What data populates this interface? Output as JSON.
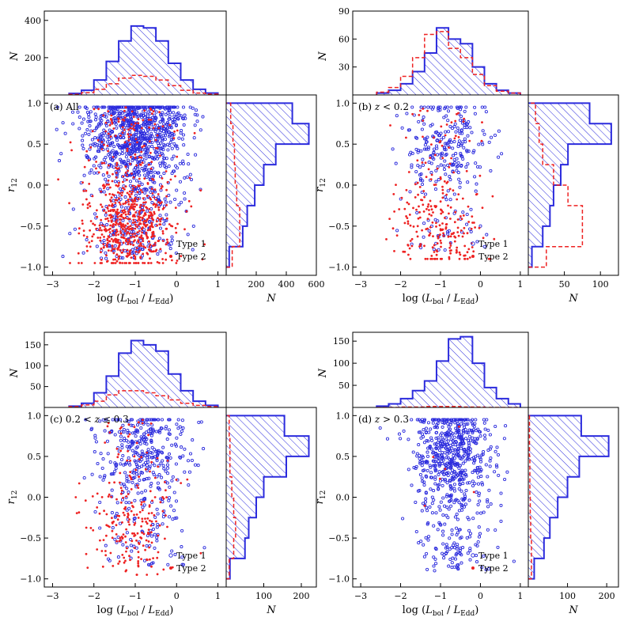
{
  "chart_data": [
    {
      "type": "scatter",
      "panel_label": "(a) All",
      "xlabel": "log (L_bol / L_Edd)",
      "ylabel": "r_12",
      "xlim": [
        -3.2,
        1.2
      ],
      "ylim": [
        -1.1,
        1.1
      ],
      "xticks": [
        "−3",
        "−2",
        "−1",
        "0",
        "1"
      ],
      "yticks": [
        "−1.0",
        "−0.5",
        "0.0",
        "0.5",
        "1.0"
      ],
      "legend": [
        "Type 1",
        "Type 2"
      ],
      "colors": {
        "type1": "#2b2bdd",
        "type2": "#ee2222"
      },
      "type1_cloud": {
        "n": 1100,
        "x_mean": -0.95,
        "x_sd": 0.6,
        "y_range": [
          -0.9,
          0.95
        ],
        "y_peak": 0.65
      },
      "type2_cloud": {
        "n": 700,
        "x_mean": -1.1,
        "x_sd": 0.55,
        "y_range": [
          -0.95,
          0.95
        ],
        "y_peak": -0.5
      },
      "top_hist": {
        "ylabel": "N",
        "ylim": [
          0,
          450
        ],
        "yticks": [
          "200",
          "400"
        ],
        "bin_edges": [
          -2.6,
          -2.3,
          -2.0,
          -1.7,
          -1.4,
          -1.1,
          -0.8,
          -0.5,
          -0.2,
          0.1,
          0.4,
          0.7,
          1.0
        ],
        "type1": [
          8,
          25,
          80,
          180,
          290,
          370,
          360,
          290,
          170,
          80,
          30,
          10
        ],
        "type2": [
          3,
          12,
          30,
          60,
          90,
          105,
          100,
          80,
          50,
          25,
          10,
          4
        ]
      },
      "right_hist": {
        "xlabel": "N",
        "xlim": [
          0,
          600
        ],
        "xticks": [
          "200",
          "400",
          "600"
        ],
        "bin_edges": [
          -1.0,
          -0.75,
          -0.5,
          -0.25,
          0.0,
          0.25,
          0.5,
          0.75,
          1.0
        ],
        "type1": [
          20,
          110,
          140,
          190,
          250,
          330,
          550,
          440
        ],
        "type2": [
          40,
          90,
          90,
          70,
          60,
          55,
          45,
          30
        ]
      }
    },
    {
      "type": "scatter",
      "panel_label": "(b) z < 0.2",
      "xlabel": "log (L_bol / L_Edd)",
      "ylabel": "r_12",
      "xlim": [
        -3.2,
        1.2
      ],
      "ylim": [
        -1.1,
        1.1
      ],
      "xticks": [
        "−3",
        "−2",
        "−1",
        "0",
        "1"
      ],
      "yticks": [
        "−1.0",
        "−0.5",
        "0.0",
        "0.5",
        "1.0"
      ],
      "legend": [
        "Type 1",
        "Type 2"
      ],
      "colors": {
        "type1": "#2b2bdd",
        "type2": "#ee2222"
      },
      "type1_cloud": {
        "n": 280,
        "x_mean": -0.85,
        "x_sd": 0.55,
        "y_range": [
          -0.8,
          0.95
        ],
        "y_peak": 0.6
      },
      "type2_cloud": {
        "n": 260,
        "x_mean": -1.05,
        "x_sd": 0.55,
        "y_range": [
          -0.9,
          0.95
        ],
        "y_peak": -0.55
      },
      "top_hist": {
        "ylabel": "N",
        "ylim": [
          0,
          90
        ],
        "yticks": [
          "30",
          "60",
          "90"
        ],
        "bin_edges": [
          -2.6,
          -2.3,
          -2.0,
          -1.7,
          -1.4,
          -1.1,
          -0.8,
          -0.5,
          -0.2,
          0.1,
          0.4,
          0.7,
          1.0
        ],
        "type1": [
          2,
          5,
          12,
          25,
          45,
          72,
          60,
          55,
          30,
          12,
          5,
          2
        ],
        "type2": [
          3,
          8,
          20,
          40,
          65,
          68,
          50,
          40,
          22,
          10,
          4,
          2
        ]
      },
      "right_hist": {
        "xlabel": "N",
        "xlim": [
          0,
          125
        ],
        "xticks": [
          "50",
          "100"
        ],
        "bin_edges": [
          -1.0,
          -0.75,
          -0.5,
          -0.25,
          0.0,
          0.25,
          0.5,
          0.75,
          1.0
        ],
        "type1": [
          5,
          20,
          30,
          35,
          45,
          55,
          115,
          85
        ],
        "type2": [
          25,
          75,
          75,
          55,
          35,
          20,
          15,
          10
        ]
      }
    },
    {
      "type": "scatter",
      "panel_label": "(c) 0.2 < z ≤ 0.3",
      "xlabel": "log (L_bol / L_Edd)",
      "ylabel": "r_12",
      "xlim": [
        -3.2,
        1.2
      ],
      "ylim": [
        -1.1,
        1.1
      ],
      "xticks": [
        "−3",
        "−2",
        "−1",
        "0",
        "1"
      ],
      "yticks": [
        "−1.0",
        "−0.5",
        "0.0",
        "0.5",
        "1.0"
      ],
      "legend": [
        "Type 1",
        "Type 2"
      ],
      "colors": {
        "type1": "#2b2bdd",
        "type2": "#ee2222"
      },
      "type1_cloud": {
        "n": 420,
        "x_mean": -0.85,
        "x_sd": 0.55,
        "y_range": [
          -0.85,
          0.95
        ],
        "y_peak": 0.6
      },
      "type2_cloud": {
        "n": 230,
        "x_mean": -1.05,
        "x_sd": 0.55,
        "y_range": [
          -0.95,
          0.95
        ],
        "y_peak": -0.35
      },
      "top_hist": {
        "ylabel": "N",
        "ylim": [
          0,
          180
        ],
        "yticks": [
          "50",
          "100",
          "150"
        ],
        "bin_edges": [
          -2.6,
          -2.3,
          -2.0,
          -1.7,
          -1.4,
          -1.1,
          -0.8,
          -0.5,
          -0.2,
          0.1,
          0.4,
          0.7,
          1.0
        ],
        "type1": [
          3,
          10,
          35,
          75,
          130,
          160,
          150,
          135,
          80,
          40,
          15,
          5
        ],
        "type2": [
          2,
          6,
          15,
          30,
          40,
          40,
          35,
          28,
          18,
          10,
          5,
          2
        ]
      },
      "right_hist": {
        "xlabel": "N",
        "xlim": [
          0,
          240
        ],
        "xticks": [
          "100",
          "200"
        ],
        "bin_edges": [
          -1.0,
          -0.75,
          -0.5,
          -0.25,
          0.0,
          0.25,
          0.5,
          0.75,
          1.0
        ],
        "type1": [
          10,
          50,
          60,
          80,
          100,
          160,
          220,
          155
        ],
        "type2": [
          8,
          20,
          25,
          20,
          15,
          10,
          10,
          8
        ]
      }
    },
    {
      "type": "scatter",
      "panel_label": "(d) z > 0.3",
      "xlabel": "log (L_bol / L_Edd)",
      "ylabel": "r_12",
      "xlim": [
        -3.2,
        1.2
      ],
      "ylim": [
        -1.1,
        1.1
      ],
      "xticks": [
        "−3",
        "−2",
        "−1",
        "0",
        "1"
      ],
      "yticks": [
        "−1.0",
        "−0.5",
        "0.0",
        "0.5",
        "1.0"
      ],
      "legend": [
        "Type 1",
        "Type 2"
      ],
      "colors": {
        "type1": "#2b2bdd",
        "type2": "#ee2222"
      },
      "type1_cloud": {
        "n": 700,
        "x_mean": -0.7,
        "x_sd": 0.5,
        "y_range": [
          -0.9,
          0.95
        ],
        "y_peak": 0.6
      },
      "type2_cloud": {
        "n": 6,
        "x_mean": -0.8,
        "x_sd": 0.5,
        "y_range": [
          -0.9,
          0.9
        ],
        "y_peak": 0.0
      },
      "top_hist": {
        "ylabel": "N",
        "ylim": [
          0,
          170
        ],
        "yticks": [
          "50",
          "100",
          "150"
        ],
        "bin_edges": [
          -2.6,
          -2.3,
          -2.0,
          -1.7,
          -1.4,
          -1.1,
          -0.8,
          -0.5,
          -0.2,
          0.1,
          0.4,
          0.7,
          1.0
        ],
        "type1": [
          3,
          8,
          20,
          38,
          60,
          105,
          155,
          160,
          100,
          45,
          20,
          8
        ],
        "type2": [
          0,
          0,
          1,
          1,
          2,
          2,
          2,
          1,
          1,
          0,
          0,
          0
        ]
      },
      "right_hist": {
        "xlabel": "N",
        "xlim": [
          0,
          230
        ],
        "xticks": [
          "100",
          "200"
        ],
        "bin_edges": [
          -1.0,
          -0.75,
          -0.5,
          -0.25,
          0.0,
          0.25,
          0.5,
          0.75,
          1.0
        ],
        "type1": [
          15,
          40,
          55,
          75,
          100,
          130,
          205,
          135
        ],
        "type2": [
          8,
          8,
          6,
          5,
          4,
          4,
          3,
          3
        ]
      }
    }
  ]
}
